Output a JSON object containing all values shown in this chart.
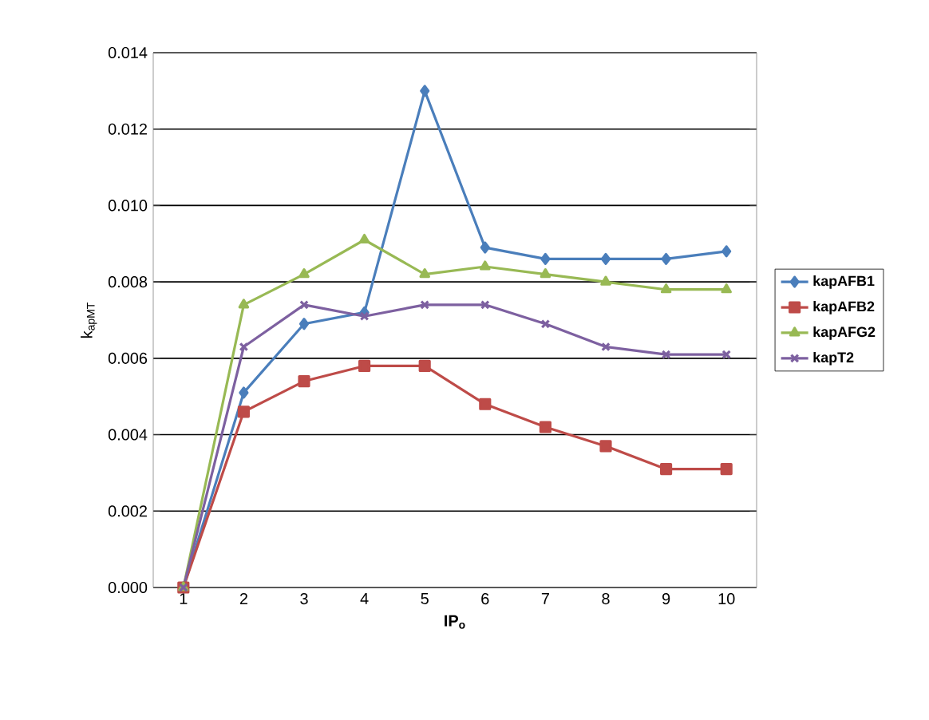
{
  "chart_data": {
    "type": "line",
    "xlabel": "IP$_{o}$",
    "ylabel": "k$_{apMT}$",
    "categories": [
      "1",
      "2",
      "3",
      "4",
      "5",
      "6",
      "7",
      "8",
      "9",
      "10"
    ],
    "ylim": [
      0,
      0.014
    ],
    "yticks": [
      {
        "value": 0,
        "label": "0.000"
      },
      {
        "value": 0.002,
        "label": "0.002"
      },
      {
        "value": 0.004,
        "label": "0.004"
      },
      {
        "value": 0.006,
        "label": "0.006"
      },
      {
        "value": 0.008,
        "label": "0.008"
      },
      {
        "value": 0.01,
        "label": "0.010"
      },
      {
        "value": 0.012,
        "label": "0.012"
      },
      {
        "value": 0.014,
        "label": "0.014"
      }
    ],
    "grid": "y",
    "legend": "right",
    "line_style": "solid",
    "series": [
      {
        "name": "kapAFB1",
        "color": "#4a7ebb",
        "marker": "diamond",
        "values": [
          0,
          0.0051,
          0.0069,
          0.0072,
          0.013,
          0.0089,
          0.0086,
          0.0086,
          0.0086,
          0.0088
        ]
      },
      {
        "name": "kapAFB2",
        "color": "#be4b48",
        "marker": "square",
        "values": [
          0,
          0.0046,
          0.0054,
          0.0058,
          0.0058,
          0.0048,
          0.0042,
          0.0037,
          0.0031,
          0.0031
        ]
      },
      {
        "name": "kapAFG2",
        "color": "#98b954",
        "marker": "triangle",
        "values": [
          0,
          0.0074,
          0.0082,
          0.0091,
          0.0082,
          0.0084,
          0.0082,
          0.008,
          0.0078,
          0.0078
        ]
      },
      {
        "name": "kapT2",
        "color": "#7d60a0",
        "marker": "cross",
        "values": [
          0,
          0.0063,
          0.0074,
          0.0071,
          0.0074,
          0.0074,
          0.0069,
          0.0063,
          0.0061,
          0.0061
        ]
      }
    ]
  }
}
